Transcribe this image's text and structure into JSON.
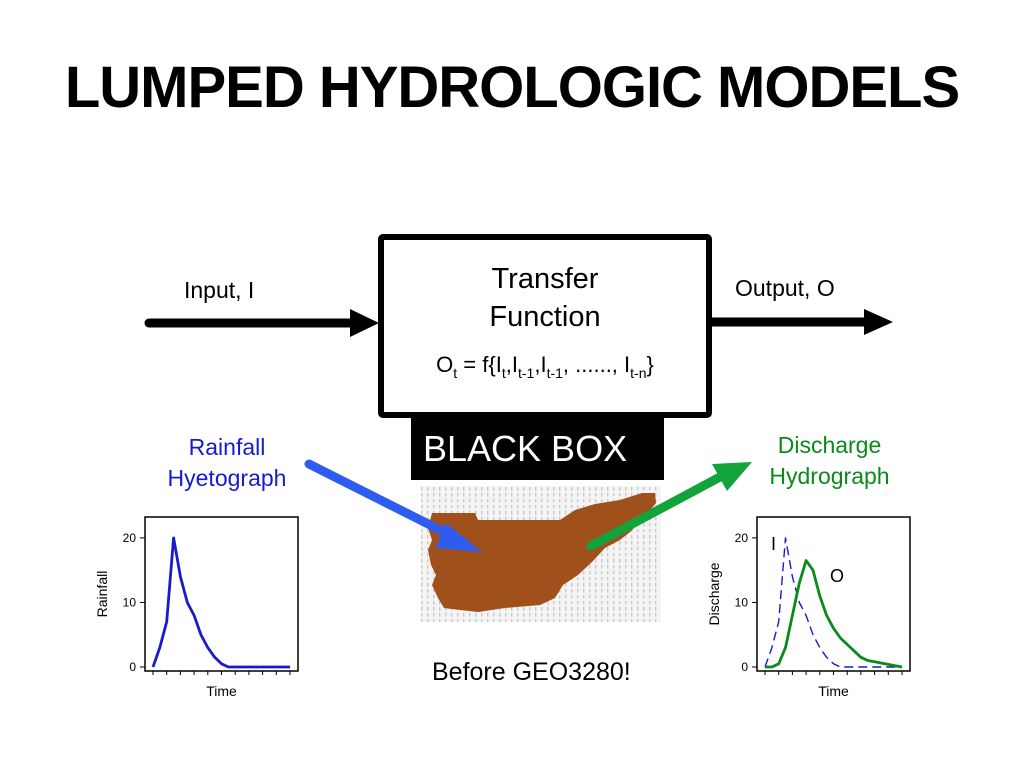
{
  "slide": {
    "title": "LUMPED HYDROLOGIC MODELS"
  },
  "diagram": {
    "input_label": "Input, I",
    "output_label": "Output, O",
    "transfer_function": {
      "title_line1": "Transfer",
      "title_line2": "Function",
      "equation": {
        "lhs": "O",
        "lhs_sub": "t",
        "eq": " = f{",
        "i1": "I",
        "i1_sub": "t",
        "c1": ",",
        "i2": "I",
        "i2_sub": "t-1",
        "c2": ",",
        "i3": "I",
        "i3_sub": "t-1",
        "mid": ", ......, ",
        "i4": "I",
        "i4_sub": "t-n",
        "close": "}"
      }
    },
    "black_box_label": "BLACK BOX",
    "rainfall_label_line1": "Rainfall",
    "rainfall_label_line2": "Hyetograph",
    "discharge_label_line1": "Discharge",
    "discharge_label_line2": "Hydrograph",
    "footnote": "Before GEO3280!",
    "colors": {
      "rain": "#1a1acc",
      "discharge": "#0a8a1a",
      "basin": "#a0501a",
      "green_arrow": "#12a33a",
      "blue_arrow": "#2f5cf0"
    }
  },
  "chart_data": [
    {
      "type": "line",
      "ylabel": "Rainfall",
      "xlabel": "Time",
      "ylim": [
        0,
        22
      ],
      "yticks": [
        0,
        10,
        20
      ],
      "series": [
        {
          "color": "#1a1acc",
          "style": "solid",
          "x": [
            0,
            1,
            2,
            3,
            4,
            5,
            6,
            7,
            8,
            9,
            10,
            11,
            12,
            13,
            14,
            15,
            16,
            17,
            18,
            19,
            20
          ],
          "y": [
            0,
            3,
            7,
            20,
            14,
            10,
            8,
            5,
            3,
            1.5,
            0.5,
            0,
            0,
            0,
            0,
            0,
            0,
            0,
            0,
            0,
            0
          ]
        }
      ]
    },
    {
      "type": "line",
      "ylabel": "Discharge",
      "xlabel": "Time",
      "ylim": [
        0,
        22
      ],
      "yticks": [
        0,
        10,
        20
      ],
      "annotations": [
        "I",
        "O"
      ],
      "series": [
        {
          "color": "#1a1acc",
          "style": "dashed",
          "x": [
            0,
            1,
            2,
            3,
            4,
            5,
            6,
            7,
            8,
            9,
            10,
            11,
            12,
            13,
            14,
            15,
            16,
            17,
            18,
            19,
            20
          ],
          "y": [
            0,
            3,
            7,
            20,
            14,
            10,
            8,
            5,
            3,
            1.5,
            0.5,
            0,
            0,
            0,
            0,
            0,
            0,
            0,
            0,
            0,
            0
          ]
        },
        {
          "color": "#0a8a1a",
          "style": "solid",
          "x": [
            0,
            1,
            2,
            3,
            4,
            5,
            6,
            7,
            8,
            9,
            10,
            11,
            12,
            13,
            14,
            15,
            16,
            17,
            18,
            19,
            20
          ],
          "y": [
            0,
            0,
            0.5,
            3,
            8,
            13,
            16.5,
            15,
            11,
            8,
            6,
            4.5,
            3.5,
            2.5,
            1.5,
            1,
            0.8,
            0.6,
            0.4,
            0.2,
            0
          ]
        }
      ]
    }
  ]
}
